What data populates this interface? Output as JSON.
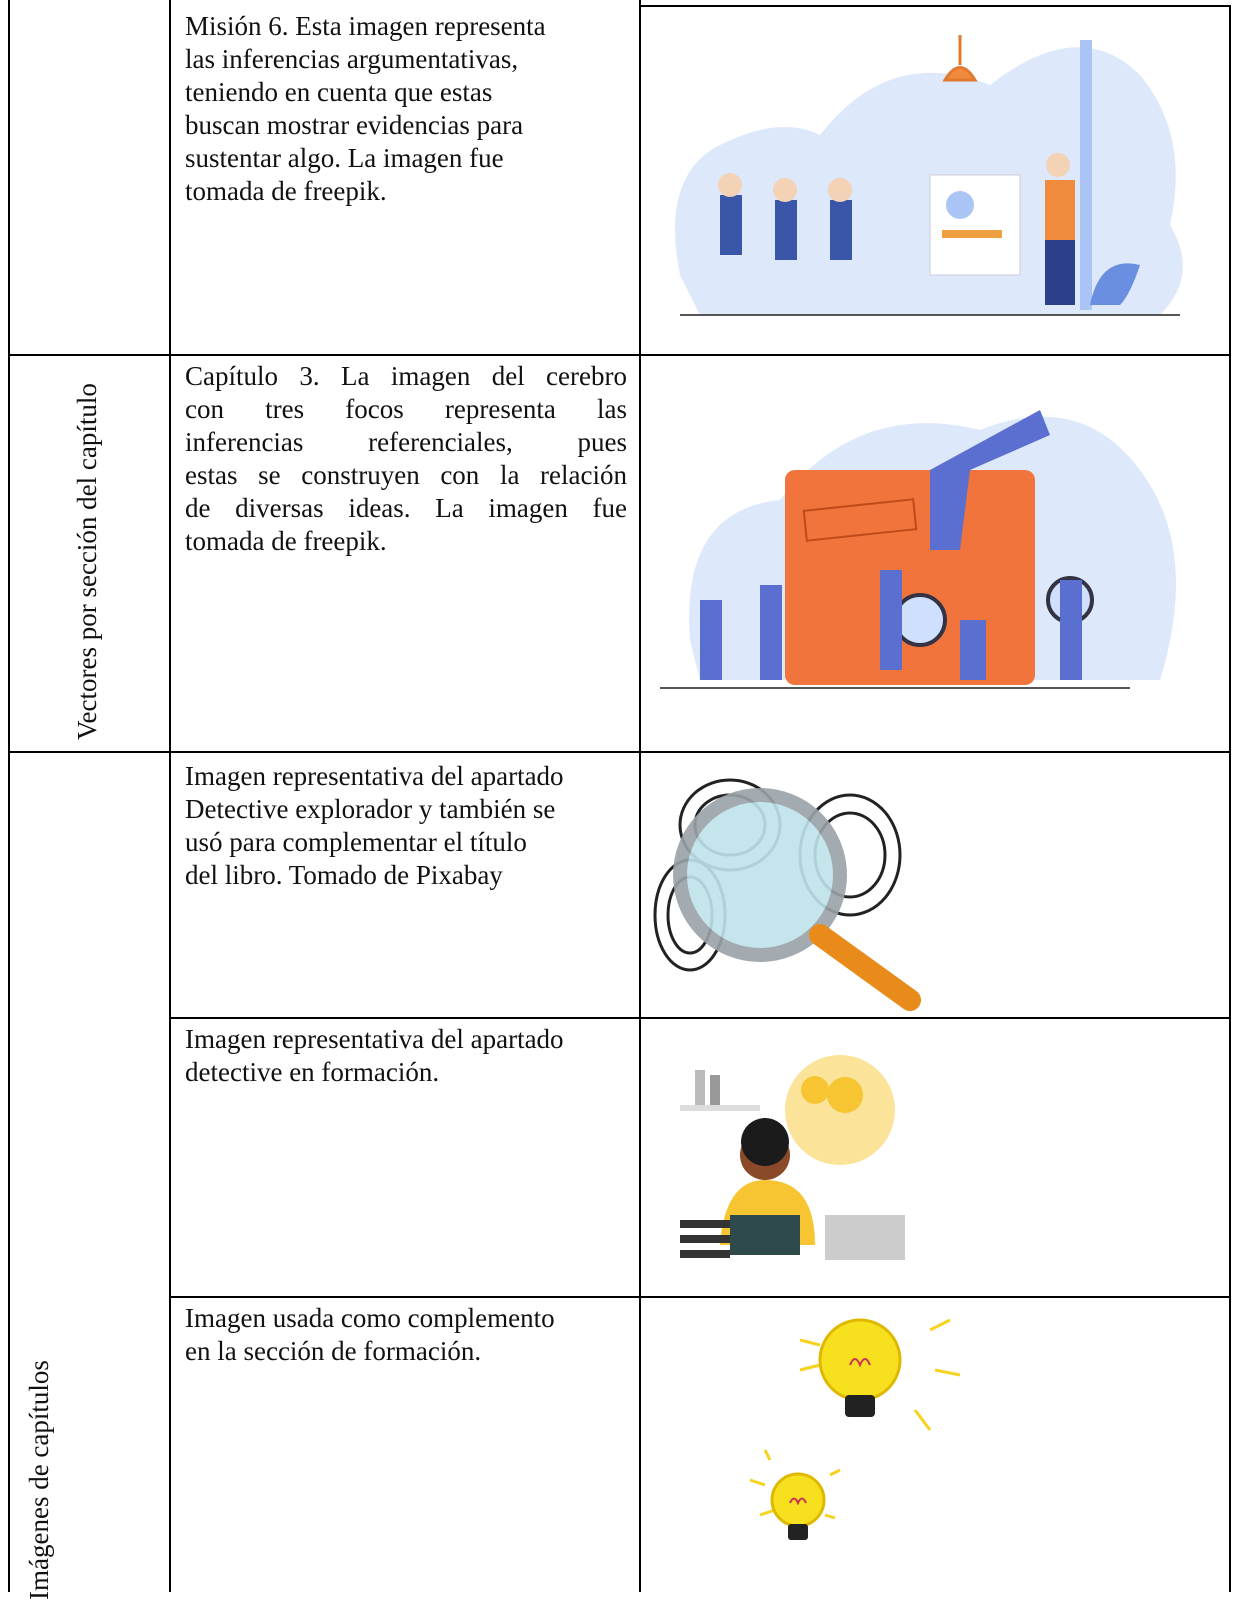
{
  "table": {
    "groups": [
      {
        "label": "Vectores por sección del capítulo"
      },
      {
        "label": "Imágenes de capítulos"
      }
    ],
    "rows": [
      {
        "lines": [
          "Misión 6. Esta imagen representa",
          "las inferencias argumentativas,",
          "teniendo en cuenta que estas",
          "buscan mostrar evidencias para",
          "sustentar algo. La imagen fue",
          "tomada de freepik."
        ]
      },
      {
        "lines": [
          "Capítulo 3. La imagen del cerebro",
          "con tres focos representa las",
          "inferencias referenciales, pues",
          "estas se construyen con la relación",
          "de diversas ideas. La imagen fue",
          "tomada de freepik."
        ]
      },
      {
        "lines": [
          "Imagen representativa del apartado",
          "Detective explorador y también se",
          "usó para complementar el título",
          "del libro. Tomado de Pixabay"
        ]
      },
      {
        "lines": [
          "Imagen representativa del apartado",
          "detective en formación."
        ]
      },
      {
        "lines": [
          "Imagen usada como complemento",
          "en la sección de formación."
        ]
      }
    ]
  }
}
